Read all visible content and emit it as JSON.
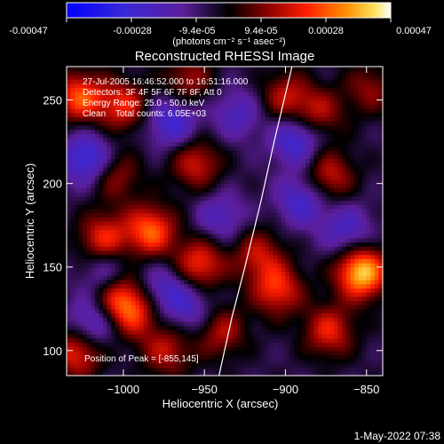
{
  "colorbar": {
    "ticks": [
      "-0.00047",
      "-0.00028",
      "-9.4e-05",
      "9.4e-05",
      "0.00028",
      "0.00047"
    ],
    "tick_values": [
      -0.00047,
      -0.00028,
      -9.4e-05,
      9.4e-05,
      0.00028,
      0.00047
    ],
    "units_label": "(photons cm⁻² s⁻¹ asec⁻²)",
    "range": [
      -0.00047,
      0.00047
    ]
  },
  "chart_data": {
    "type": "heatmap",
    "title": "Reconstructed RHESSI Image",
    "xlabel": "Heliocentric X (arcsec)",
    "ylabel": "Heliocentric Y (arcsec)",
    "xlim": [
      -1035,
      -840
    ],
    "ylim": [
      85,
      270
    ],
    "xticks": [
      -1000,
      -950,
      -900,
      -850
    ],
    "xtick_labels": [
      "−1000",
      "−950",
      "−900",
      "−850"
    ],
    "yticks": [
      100,
      150,
      200,
      250
    ],
    "ytick_labels": [
      "100",
      "150",
      "200",
      "250"
    ],
    "peak": {
      "x": -855,
      "y": 145
    },
    "limb": [
      {
        "x": -941,
        "y": 85
      },
      {
        "x": -933,
        "y": 120
      },
      {
        "x": -925,
        "y": 150
      },
      {
        "x": -915,
        "y": 190
      },
      {
        "x": -907,
        "y": 225
      },
      {
        "x": -896,
        "y": 270
      }
    ],
    "sources": [
      {
        "x": -853,
        "y": 147,
        "amp": 1.0
      },
      {
        "x": -983,
        "y": 172,
        "amp": 0.72
      },
      {
        "x": -1012,
        "y": 167,
        "amp": 0.6
      },
      {
        "x": -953,
        "y": 152,
        "amp": 0.62
      },
      {
        "x": -1027,
        "y": 252,
        "amp": 0.68
      },
      {
        "x": -1000,
        "y": 247,
        "amp": 0.55
      },
      {
        "x": -955,
        "y": 212,
        "amp": 0.5
      },
      {
        "x": -905,
        "y": 137,
        "amp": 0.6
      },
      {
        "x": -873,
        "y": 112,
        "amp": 0.55
      },
      {
        "x": -1003,
        "y": 133,
        "amp": 0.6
      },
      {
        "x": -993,
        "y": 122,
        "amp": 0.5
      },
      {
        "x": -873,
        "y": 205,
        "amp": 0.5
      },
      {
        "x": -880,
        "y": 242,
        "amp": 0.45
      },
      {
        "x": -1028,
        "y": 100,
        "amp": 0.65
      },
      {
        "x": -917,
        "y": 158,
        "amp": 0.45
      },
      {
        "x": -973,
        "y": 100,
        "amp": 0.45
      },
      {
        "x": -940,
        "y": 112,
        "amp": 0.45
      },
      {
        "x": -960,
        "y": 262,
        "amp": 0.4
      },
      {
        "x": -1005,
        "y": 205,
        "amp": 0.4
      },
      {
        "x": -900,
        "y": 252,
        "amp": 0.45
      },
      {
        "x": -848,
        "y": 257,
        "amp": 0.35
      },
      {
        "x": -1022,
        "y": 215,
        "amp": -0.6
      },
      {
        "x": -970,
        "y": 237,
        "amp": -0.5
      },
      {
        "x": -893,
        "y": 227,
        "amp": -0.55
      },
      {
        "x": -890,
        "y": 190,
        "amp": -0.45
      },
      {
        "x": -1010,
        "y": 147,
        "amp": -0.4
      },
      {
        "x": -975,
        "y": 137,
        "amp": -0.4
      },
      {
        "x": -1020,
        "y": 115,
        "amp": -0.5
      },
      {
        "x": -940,
        "y": 180,
        "amp": -0.35
      },
      {
        "x": -862,
        "y": 172,
        "amp": -0.4
      },
      {
        "x": -930,
        "y": 242,
        "amp": -0.35
      },
      {
        "x": -958,
        "y": 125,
        "amp": -0.35
      }
    ]
  },
  "info": {
    "time": "27-Jul-2005 16:46:52.000 to 16:51:16.000",
    "detectors": "Detectors: 3F 4F 5F 6F 7F 8F, Att 0",
    "energy": "Energy Range: 25.0 - 50.0 keV",
    "method": "Clean",
    "counts": "Total counts: 6.05E+03",
    "peak": "Position of Peak = [-855,145]"
  },
  "footer": {
    "date": "1-May-2022 07:38"
  }
}
